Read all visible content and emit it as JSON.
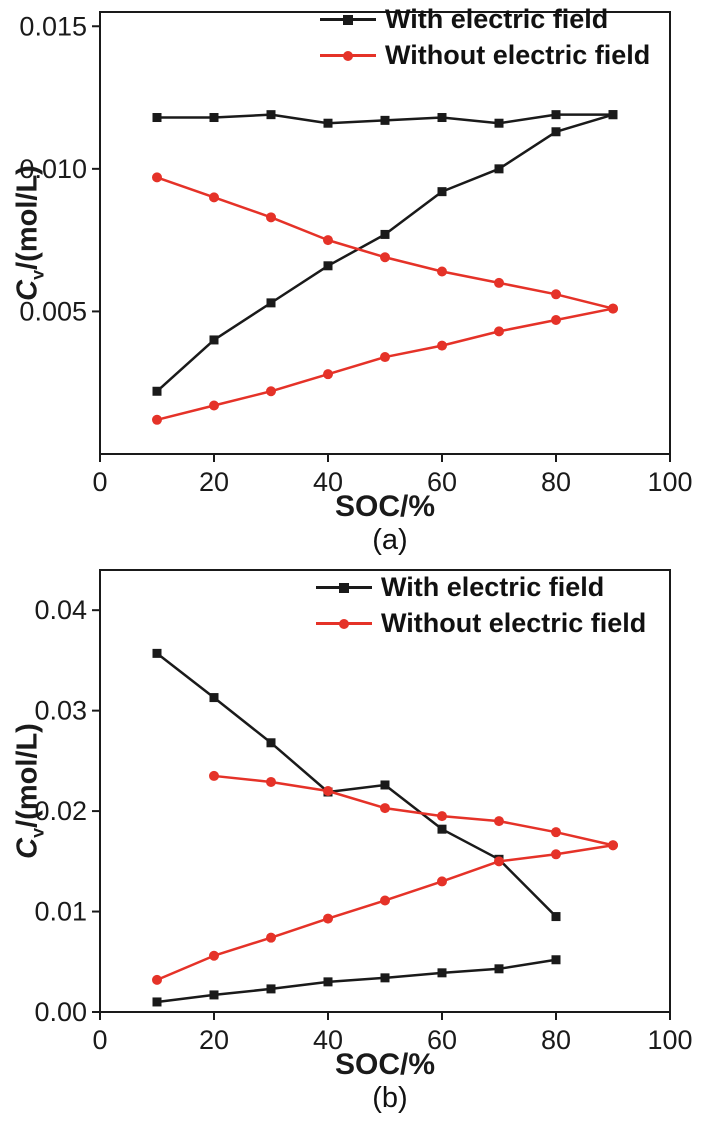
{
  "figure": {
    "background": "#ffffff",
    "text_color": "#1a1a1a"
  },
  "chart_data": [
    {
      "type": "line",
      "caption": "(a)",
      "xlabel": "SOC/%",
      "ylabel": "Cv/(mol/L)",
      "ylabel_parts": {
        "italic": "C",
        "sub": "v",
        "rest": "/(mol/L)"
      },
      "axis_color": "#1a1a1a",
      "grid": false,
      "xlim": [
        0,
        100
      ],
      "ylim": [
        0,
        0.0155
      ],
      "xticks": [
        0,
        20,
        40,
        60,
        80,
        100
      ],
      "xtick_labels": [
        "0",
        "20",
        "40",
        "60",
        "80",
        "100"
      ],
      "yticks": [
        0.005,
        0.01,
        0.015
      ],
      "ytick_labels": [
        "0.005",
        "0.010",
        "0.015"
      ],
      "legend": {
        "position": "top-inside",
        "entries": [
          {
            "label": "With electric field",
            "color": "#1a1a1a",
            "marker": "square"
          },
          {
            "label": "Without electric field",
            "color": "#e53228",
            "marker": "circle"
          }
        ]
      },
      "series": [
        {
          "name": "With electric field (upper flat line)",
          "color": "#1a1a1a",
          "marker": "square",
          "x": [
            10,
            20,
            30,
            40,
            50,
            60,
            70,
            80,
            90
          ],
          "y": [
            0.0118,
            0.0118,
            0.0119,
            0.0116,
            0.0117,
            0.0118,
            0.0116,
            0.0119,
            0.0119
          ]
        },
        {
          "name": "With electric field (rising line)",
          "color": "#1a1a1a",
          "marker": "square",
          "x": [
            10,
            20,
            30,
            40,
            50,
            60,
            70,
            80,
            90
          ],
          "y": [
            0.0022,
            0.004,
            0.0053,
            0.0066,
            0.0077,
            0.0092,
            0.01,
            0.0113,
            0.0119
          ]
        },
        {
          "name": "Without electric field (falling line)",
          "color": "#e53228",
          "marker": "circle",
          "x": [
            10,
            20,
            30,
            40,
            50,
            60,
            70,
            80,
            90
          ],
          "y": [
            0.0097,
            0.009,
            0.0083,
            0.0075,
            0.0069,
            0.0064,
            0.006,
            0.0056,
            0.0051
          ]
        },
        {
          "name": "Without electric field (rising line)",
          "color": "#e53228",
          "marker": "circle",
          "x": [
            10,
            20,
            30,
            40,
            50,
            60,
            70,
            80,
            90
          ],
          "y": [
            0.0012,
            0.0017,
            0.0022,
            0.0028,
            0.0034,
            0.0038,
            0.0043,
            0.0047,
            0.0051
          ]
        }
      ]
    },
    {
      "type": "line",
      "caption": "(b)",
      "xlabel": "SOC/%",
      "ylabel": "Cv/(mol/L)",
      "ylabel_parts": {
        "italic": "C",
        "sub": "v",
        "rest": "/(mol/L)"
      },
      "axis_color": "#1a1a1a",
      "grid": false,
      "xlim": [
        0,
        100
      ],
      "ylim": [
        0,
        0.044
      ],
      "xticks": [
        0,
        20,
        40,
        60,
        80,
        100
      ],
      "xtick_labels": [
        "0",
        "20",
        "40",
        "60",
        "80",
        "100"
      ],
      "yticks": [
        0.0,
        0.01,
        0.02,
        0.03,
        0.04
      ],
      "ytick_labels": [
        "0.00",
        "0.01",
        "0.02",
        "0.03",
        "0.04"
      ],
      "legend": {
        "position": "top-inside",
        "entries": [
          {
            "label": "With electric field",
            "color": "#1a1a1a",
            "marker": "square"
          },
          {
            "label": "Without electric field",
            "color": "#e53228",
            "marker": "circle"
          }
        ]
      },
      "series": [
        {
          "name": "With electric field (falling line)",
          "color": "#1a1a1a",
          "marker": "square",
          "x": [
            10,
            20,
            30,
            40,
            50,
            60,
            70,
            80
          ],
          "y": [
            0.0357,
            0.0313,
            0.0268,
            0.0219,
            0.0226,
            0.0182,
            0.0152,
            0.0095
          ]
        },
        {
          "name": "With electric field (lower rising line)",
          "color": "#1a1a1a",
          "marker": "square",
          "x": [
            10,
            20,
            30,
            40,
            50,
            60,
            70,
            80
          ],
          "y": [
            0.001,
            0.0017,
            0.0023,
            0.003,
            0.0034,
            0.0039,
            0.0043,
            0.0052
          ]
        },
        {
          "name": "Without electric field (falling line)",
          "color": "#e53228",
          "marker": "circle",
          "x": [
            20,
            30,
            40,
            50,
            60,
            70,
            80,
            90
          ],
          "y": [
            0.0235,
            0.0229,
            0.022,
            0.0203,
            0.0195,
            0.019,
            0.0179,
            0.0166
          ]
        },
        {
          "name": "Without electric field (rising line)",
          "color": "#e53228",
          "marker": "circle",
          "x": [
            10,
            20,
            30,
            40,
            50,
            60,
            70,
            80,
            90
          ],
          "y": [
            0.0032,
            0.0056,
            0.0074,
            0.0093,
            0.0111,
            0.013,
            0.015,
            0.0157,
            0.0166
          ]
        }
      ]
    }
  ]
}
